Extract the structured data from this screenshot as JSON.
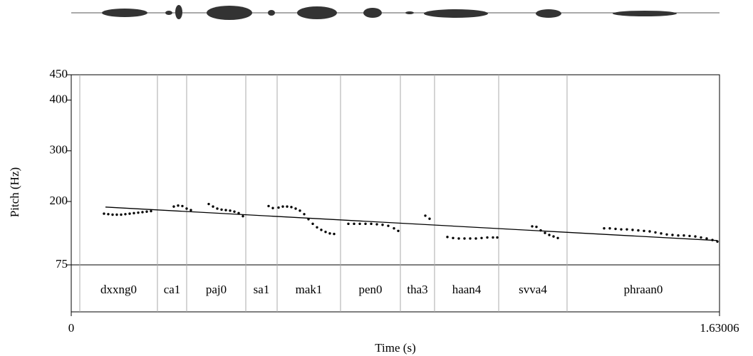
{
  "chart_data": {
    "type": "pitch",
    "x_label": "Time (s)",
    "y_label": "Pitch (Hz)",
    "xlim": [
      0,
      1.63006
    ],
    "xticks": [
      0,
      1.63006
    ],
    "ylim": [
      75,
      450
    ],
    "yticks": [
      75,
      200,
      300,
      400,
      450
    ],
    "color": "#000000",
    "x": [
      0.0824,
      0.0931,
      0.1039,
      0.1146,
      0.1254,
      0.1361,
      0.1469,
      0.1576,
      0.1684,
      0.1791,
      0.1899,
      0.2006,
      0.2579,
      0.2687,
      0.2794,
      0.2902,
      0.3009,
      0.3457,
      0.3565,
      0.3672,
      0.378,
      0.3887,
      0.3995,
      0.4102,
      0.421,
      0.4317,
      0.4962,
      0.5069,
      0.5213,
      0.532,
      0.5428,
      0.5535,
      0.5643,
      0.575,
      0.5858,
      0.5965,
      0.6073,
      0.618,
      0.6287,
      0.6395,
      0.6502,
      0.661,
      0.6968,
      0.7112,
      0.7255,
      0.7399,
      0.7542,
      0.7685,
      0.7828,
      0.7971,
      0.8115,
      0.8222,
      0.8903,
      0.901,
      0.9458,
      0.9601,
      0.9745,
      0.9888,
      1.0031,
      1.0175,
      1.0318,
      1.0461,
      1.0604,
      1.0712,
      1.159,
      1.1697,
      1.1805,
      1.1912,
      1.202,
      1.2127,
      1.2235,
      1.3399,
      1.3542,
      1.3686,
      1.3829,
      1.3972,
      1.4115,
      1.4258,
      1.4402,
      1.4545,
      1.4689,
      1.4832,
      1.4975,
      1.5118,
      1.5262,
      1.5405,
      1.5548,
      1.5692,
      1.5835,
      1.5978,
      1.6122,
      1.6247
    ],
    "values": [
      176,
      175,
      174,
      174,
      174,
      175,
      176,
      177,
      178,
      179,
      180,
      181,
      190,
      192,
      191,
      186,
      183,
      195,
      190,
      186,
      184,
      183,
      182,
      180,
      177,
      171,
      191,
      187,
      188,
      190,
      190,
      189,
      186,
      182,
      175,
      165,
      156,
      149,
      144,
      140,
      137,
      136,
      156,
      156,
      156,
      156,
      156,
      155,
      154,
      152,
      147,
      142,
      172,
      166,
      130,
      128,
      127,
      127,
      127,
      127,
      128,
      129,
      129,
      129,
      151,
      150,
      143,
      138,
      134,
      131,
      128,
      147,
      147,
      146,
      145,
      145,
      144,
      143,
      142,
      141,
      139,
      137,
      135,
      134,
      133,
      133,
      132,
      131,
      129,
      127,
      124,
      121
    ],
    "trend": {
      "x": [
        0.086,
        1.6247
      ],
      "values": [
        189,
        123
      ]
    },
    "tier": {
      "boundaries": [
        0.0215,
        0.2167,
        0.2902,
        0.4389,
        0.5177,
        0.6771,
        0.8276,
        0.9135,
        1.0748,
        1.2467
      ],
      "labels": [
        "dxxng0",
        "ca1",
        "paj0",
        "sa1",
        "mak1",
        "pen0",
        "tha3",
        "haan4",
        "svva4",
        "phraan0"
      ]
    }
  }
}
